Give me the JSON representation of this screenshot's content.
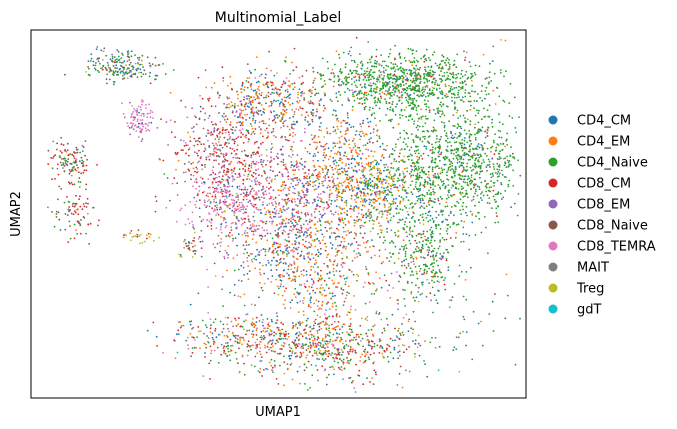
{
  "chart_data": {
    "type": "scatter",
    "title": "Multinomial_Label",
    "xlabel": "UMAP1",
    "ylabel": "UMAP2",
    "xticks": "none",
    "yticks": "none",
    "grid": false,
    "legend_position": "right",
    "xlim": [
      0,
      100
    ],
    "ylim": [
      0,
      100
    ],
    "categories": [
      "CD4_CM",
      "CD4_EM",
      "CD4_Naive",
      "CD8_CM",
      "CD8_EM",
      "CD8_Naive",
      "CD8_TEMRA",
      "MAIT",
      "Treg",
      "gdT"
    ],
    "colors": [
      "#1f77b4",
      "#ff7f0e",
      "#2ca02c",
      "#d62728",
      "#9467bd",
      "#8c564b",
      "#e377c2",
      "#7f7f7f",
      "#bcbd22",
      "#17becf"
    ],
    "clusters": [
      {
        "x": 76,
        "y": 86,
        "sx": 8,
        "sy": 4,
        "n": 900,
        "mix": [
          0.05,
          0.03,
          0.86,
          0.02,
          0.01,
          0.01,
          0.01,
          0.0,
          0.01,
          0.0
        ]
      },
      {
        "x": 89,
        "y": 64,
        "sx": 5,
        "sy": 8,
        "n": 700,
        "mix": [
          0.08,
          0.03,
          0.83,
          0.02,
          0.01,
          0.01,
          0.01,
          0.0,
          0.01,
          0.0
        ]
      },
      {
        "x": 78,
        "y": 58,
        "sx": 4,
        "sy": 12,
        "n": 500,
        "mix": [
          0.12,
          0.05,
          0.74,
          0.02,
          0.01,
          0.02,
          0.01,
          0.0,
          0.03,
          0.0
        ]
      },
      {
        "x": 80,
        "y": 38,
        "sx": 3,
        "sy": 5,
        "n": 160,
        "mix": [
          0.1,
          0.05,
          0.7,
          0.05,
          0.02,
          0.05,
          0.02,
          0.0,
          0.01,
          0.0
        ]
      },
      {
        "x": 48,
        "y": 80,
        "sx": 6,
        "sy": 5,
        "n": 450,
        "mix": [
          0.25,
          0.35,
          0.05,
          0.12,
          0.08,
          0.05,
          0.07,
          0.01,
          0.02,
          0.0
        ]
      },
      {
        "x": 39,
        "y": 66,
        "sx": 5,
        "sy": 7,
        "n": 450,
        "mix": [
          0.05,
          0.08,
          0.03,
          0.45,
          0.12,
          0.1,
          0.15,
          0.01,
          0.01,
          0.0
        ]
      },
      {
        "x": 41,
        "y": 53,
        "sx": 5,
        "sy": 5,
        "n": 350,
        "mix": [
          0.05,
          0.05,
          0.03,
          0.1,
          0.15,
          0.05,
          0.55,
          0.01,
          0.01,
          0.0
        ]
      },
      {
        "x": 54,
        "y": 55,
        "sx": 4,
        "sy": 9,
        "n": 450,
        "mix": [
          0.05,
          0.2,
          0.03,
          0.15,
          0.4,
          0.05,
          0.1,
          0.01,
          0.01,
          0.0
        ]
      },
      {
        "x": 64,
        "y": 60,
        "sx": 4,
        "sy": 12,
        "n": 600,
        "mix": [
          0.25,
          0.5,
          0.08,
          0.05,
          0.04,
          0.02,
          0.02,
          0.0,
          0.04,
          0.0
        ]
      },
      {
        "x": 71,
        "y": 56,
        "sx": 3,
        "sy": 5,
        "n": 250,
        "mix": [
          0.25,
          0.2,
          0.2,
          0.03,
          0.05,
          0.02,
          0.02,
          0.0,
          0.23,
          0.0
        ]
      },
      {
        "x": 50,
        "y": 40,
        "sx": 6,
        "sy": 6,
        "n": 300,
        "mix": [
          0.25,
          0.25,
          0.1,
          0.1,
          0.15,
          0.05,
          0.06,
          0.01,
          0.03,
          0.0
        ]
      },
      {
        "x": 58,
        "y": 28,
        "sx": 3,
        "sy": 6,
        "n": 120,
        "mix": [
          0.15,
          0.6,
          0.05,
          0.1,
          0.02,
          0.03,
          0.03,
          0.0,
          0.02,
          0.0
        ]
      },
      {
        "x": 58,
        "y": 14,
        "sx": 10,
        "sy": 4,
        "n": 600,
        "mix": [
          0.08,
          0.22,
          0.22,
          0.2,
          0.05,
          0.12,
          0.04,
          0.02,
          0.02,
          0.03
        ]
      },
      {
        "x": 40,
        "y": 17,
        "sx": 6,
        "sy": 3,
        "n": 160,
        "mix": [
          0.2,
          0.3,
          0.1,
          0.2,
          0.05,
          0.05,
          0.05,
          0.02,
          0.03,
          0.0
        ]
      },
      {
        "x": 18,
        "y": 90,
        "sx": 4,
        "sy": 2,
        "n": 200,
        "mix": [
          0.25,
          0.05,
          0.35,
          0.05,
          0.03,
          0.2,
          0.03,
          0.02,
          0.02,
          0.0
        ]
      },
      {
        "x": 22,
        "y": 76,
        "sx": 1.5,
        "sy": 2.5,
        "n": 90,
        "mix": [
          0.03,
          0.02,
          0.02,
          0.03,
          0.1,
          0.03,
          0.75,
          0.01,
          0.01,
          0.0
        ]
      },
      {
        "x": 8,
        "y": 64,
        "sx": 2,
        "sy": 3,
        "n": 120,
        "mix": [
          0.05,
          0.05,
          0.25,
          0.3,
          0.03,
          0.27,
          0.03,
          0.02,
          0.0,
          0.0
        ]
      },
      {
        "x": 9,
        "y": 50,
        "sx": 2,
        "sy": 3,
        "n": 80,
        "mix": [
          0.05,
          0.05,
          0.2,
          0.35,
          0.03,
          0.27,
          0.03,
          0.02,
          0.0,
          0.0
        ]
      },
      {
        "x": 32,
        "y": 41,
        "sx": 1,
        "sy": 1.5,
        "n": 30,
        "mix": [
          0.1,
          0.1,
          0.1,
          0.2,
          0.0,
          0.4,
          0.0,
          0.0,
          0.1,
          0.0
        ]
      },
      {
        "x": 22,
        "y": 44,
        "sx": 2,
        "sy": 1,
        "n": 25,
        "mix": [
          0.1,
          0.1,
          0.0,
          0.1,
          0.0,
          0.2,
          0.0,
          0.0,
          0.5,
          0.0
        ]
      },
      {
        "x": 66,
        "y": 30,
        "sx": 14,
        "sy": 15,
        "n": 400,
        "mix": [
          0.15,
          0.2,
          0.25,
          0.1,
          0.08,
          0.06,
          0.06,
          0.03,
          0.05,
          0.02
        ]
      }
    ]
  }
}
